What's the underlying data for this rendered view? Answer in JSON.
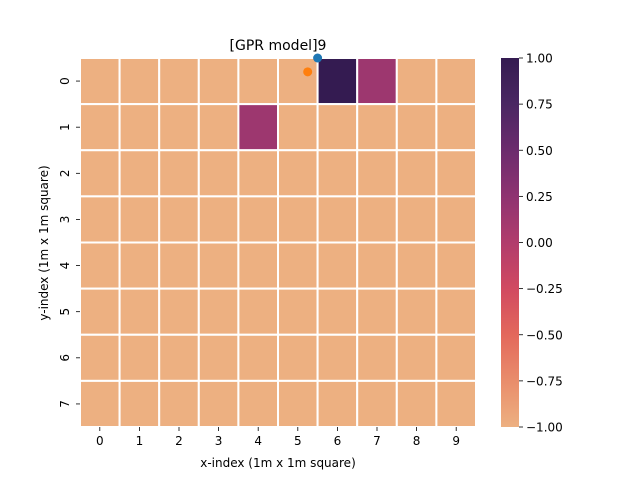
{
  "chart_data": {
    "type": "heatmap",
    "title": "[GPR model]9",
    "xlabel": "x-index (1m x 1m square)",
    "ylabel": "y-index (1m x 1m square)",
    "x_categories": [
      "0",
      "1",
      "2",
      "3",
      "4",
      "5",
      "6",
      "7",
      "8",
      "9"
    ],
    "y_categories": [
      "0",
      "1",
      "2",
      "3",
      "4",
      "5",
      "6",
      "7"
    ],
    "values": [
      [
        -1,
        -1,
        -1,
        -1,
        -1,
        -1,
        1,
        0.15,
        -1,
        -1
      ],
      [
        -1,
        -1,
        -1,
        -1,
        0.15,
        -1,
        -1,
        -1,
        -1,
        -1
      ],
      [
        -1,
        -1,
        -1,
        -1,
        -1,
        -1,
        -1,
        -1,
        -1,
        -1
      ],
      [
        -1,
        -1,
        -1,
        -1,
        -1,
        -1,
        -1,
        -1,
        -1,
        -1
      ],
      [
        -1,
        -1,
        -1,
        -1,
        -1,
        -1,
        -1,
        -1,
        -1,
        -1
      ],
      [
        -1,
        -1,
        -1,
        -1,
        -1,
        -1,
        -1,
        -1,
        -1,
        -1
      ],
      [
        -1,
        -1,
        -1,
        -1,
        -1,
        -1,
        -1,
        -1,
        -1,
        -1
      ],
      [
        -1,
        -1,
        -1,
        -1,
        -1,
        -1,
        -1,
        -1,
        -1,
        -1
      ]
    ],
    "colorbar": {
      "min": -1.0,
      "max": 1.0,
      "ticks": [
        "1.00",
        "0.75",
        "0.50",
        "0.25",
        "0.00",
        "−0.25",
        "−0.50",
        "−0.75",
        "−1.00"
      ],
      "colormap": "flare",
      "stops": [
        "#edb081",
        "#e98d6b",
        "#e3685c",
        "#d14a61",
        "#b13c6c",
        "#8f3371",
        "#6c2b6d",
        "#4a2762",
        "#341b51"
      ]
    },
    "points": [
      {
        "x": 6.0,
        "y": 0.0,
        "color": "#1f77b4"
      },
      {
        "x": 5.75,
        "y": 0.3,
        "color": "#ff7f0e"
      }
    ],
    "grid_line_color": "#ffffff"
  }
}
